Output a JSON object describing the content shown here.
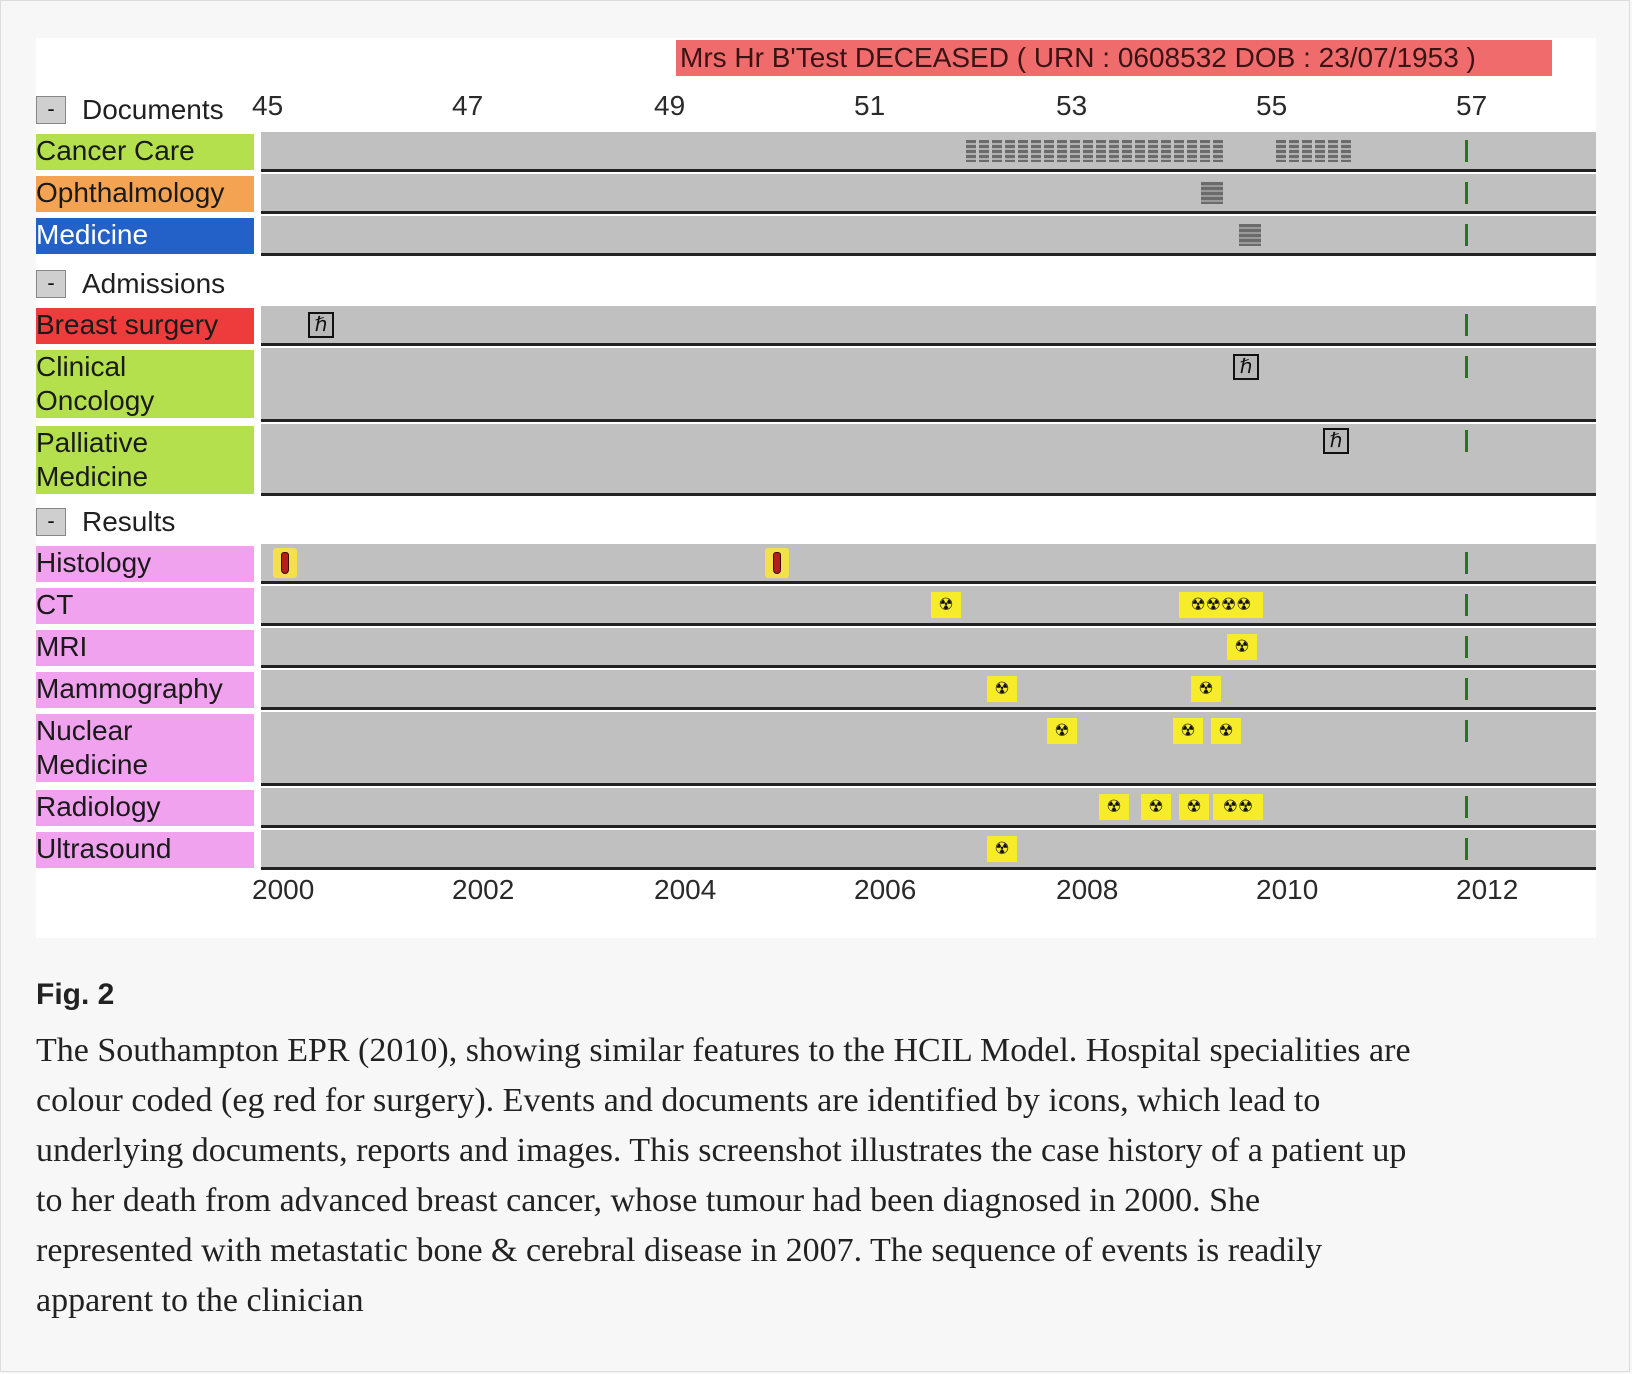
{
  "banner": "Mrs Hr B'Test DECEASED ( URN : 0608532 DOB : 23/07/1953 )",
  "sections": {
    "documents": "Documents",
    "admissions": "Admissions",
    "results": "Results"
  },
  "collapse_symbol": "-",
  "ages": [
    "45",
    "47",
    "49",
    "51",
    "53",
    "55",
    "57"
  ],
  "years": [
    "2000",
    "2002",
    "2004",
    "2006",
    "2008",
    "2010",
    "2012"
  ],
  "colors": {
    "cancer_care": "#b5e04e",
    "ophthalmology": "#f4a352",
    "medicine": "#2360c8",
    "surgery": "#ee3b3b",
    "oncology": "#b5e04e",
    "results": "#f0a2ee",
    "track": "#c0c0c0",
    "banner": "#f06c6c",
    "radiology_icon": "#f6ec2a",
    "death_marker": "#1f7a1f"
  },
  "rows": {
    "cancer_care": "Cancer Care",
    "ophthalmology": "Ophthalmology",
    "medicine": "Medicine",
    "breast_surgery": "Breast surgery",
    "clinical_oncology_1": "Clinical",
    "clinical_oncology_2": "Oncology",
    "palliative_1": "Palliative",
    "palliative_2": "Medicine",
    "histology": "Histology",
    "ct": "CT",
    "mri": "MRI",
    "mammography": "Mammography",
    "nuclear_1": "Nuclear",
    "nuclear_2": "Medicine",
    "radiology": "Radiology",
    "ultrasound": "Ultrasound"
  },
  "icons": {
    "admission": "admission-icon",
    "sample_tube": "sample-tube-icon",
    "radiation": "radiation-icon",
    "document": "document-icon",
    "admission_glyph": "ℏ",
    "radiation_glyph": "☢"
  },
  "caption": {
    "label": "Fig. 2",
    "text": "The Southampton EPR (2010), showing similar features to the HCIL Model. Hospital specialities are colour coded (eg red for surgery). Events and documents are identified by icons, which lead to underlying documents, reports and images. This screenshot illustrates the case history of a patient up to her death from advanced breast cancer, whose tumour had been diagnosed in 2000. She represented with metastatic bone & cerebral disease in 2007. The sequence of events is readily apparent to the clinician"
  }
}
